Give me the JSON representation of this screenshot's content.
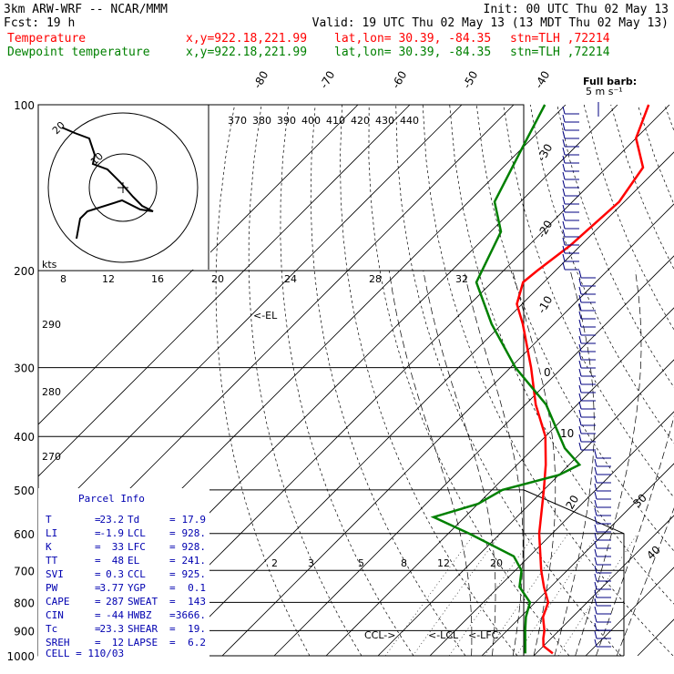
{
  "header": {
    "line1_left": "3km ARW-WRF -- NCAR/MMM",
    "line1_right": "Init: 00 UTC Thu 02 May 13",
    "line2_left": "Fcst:   19 h",
    "line2_right": "Valid: 19 UTC Thu 02 May 13 (13 MDT Thu 02 May 13)",
    "temp_label": "Temperature",
    "dew_label": "Dewpoint temperature",
    "xy": "x,y=922.18,221.99",
    "latlon": "lat,lon= 30.39, -84.35",
    "stn": "stn=TLH ,72214",
    "barb_key": "Full barb:",
    "barb_key2": "5 m s⁻¹"
  },
  "colors": {
    "temperature": "#ff0000",
    "dewpoint": "#008000",
    "text": "#000000",
    "parcel": "#0000b0",
    "barbs": "#000080"
  },
  "chart_data": {
    "type": "skew-t",
    "pressure_levels": [
      100,
      200,
      300,
      400,
      500,
      600,
      700,
      800,
      900,
      1000
    ],
    "temp_tick_labels": [
      "-80",
      "-70",
      "-60",
      "-50",
      "-40",
      "-30",
      "-20",
      "-10",
      "0",
      "10",
      "20",
      "30",
      "40"
    ],
    "theta_labels": [
      "370",
      "380",
      "390",
      "400",
      "410",
      "420",
      "430",
      "440"
    ],
    "theta_side_labels": [
      "290",
      "280",
      "270"
    ],
    "mixing_ratio_labels": [
      "2",
      "3",
      "5",
      "8",
      "12",
      "20"
    ],
    "hodograph_speed_labels": [
      "kts",
      "8",
      "12",
      "16",
      "20",
      "24",
      "28",
      "32"
    ],
    "hodograph_ring_labels": [
      "20",
      "10"
    ],
    "markers": {
      "el": "<-EL",
      "ccl": "CCL->",
      "lcl": "<-LCL",
      "lfc": "<-LFC"
    },
    "temperature": [
      {
        "p": 990,
        "t": 23.2
      },
      {
        "p": 960,
        "t": 20.0
      },
      {
        "p": 930,
        "t": 18.5
      },
      {
        "p": 900,
        "t": 17.2
      },
      {
        "p": 850,
        "t": 14.3
      },
      {
        "p": 800,
        "t": 12.5
      },
      {
        "p": 750,
        "t": 8.7
      },
      {
        "p": 700,
        "t": 5.0
      },
      {
        "p": 600,
        "t": -2.5
      },
      {
        "p": 500,
        "t": -10.0
      },
      {
        "p": 450,
        "t": -14.5
      },
      {
        "p": 400,
        "t": -20.0
      },
      {
        "p": 350,
        "t": -28.0
      },
      {
        "p": 300,
        "t": -36.0
      },
      {
        "p": 250,
        "t": -46.0
      },
      {
        "p": 230,
        "t": -51.0
      },
      {
        "p": 210,
        "t": -54.0
      },
      {
        "p": 200,
        "t": -53.5
      },
      {
        "p": 180,
        "t": -52.0
      },
      {
        "p": 150,
        "t": -51.0
      },
      {
        "p": 130,
        "t": -53.0
      },
      {
        "p": 115,
        "t": -60.0
      },
      {
        "p": 100,
        "t": -64.0
      }
    ],
    "dewpoint": [
      {
        "p": 990,
        "t": 17.9
      },
      {
        "p": 950,
        "t": 16.0
      },
      {
        "p": 900,
        "t": 13.5
      },
      {
        "p": 850,
        "t": 11.0
      },
      {
        "p": 800,
        "t": 9.0
      },
      {
        "p": 750,
        "t": 4.0
      },
      {
        "p": 700,
        "t": 1.2
      },
      {
        "p": 660,
        "t": -3.0
      },
      {
        "p": 600,
        "t": -16.0
      },
      {
        "p": 560,
        "t": -26.0
      },
      {
        "p": 530,
        "t": -20.0
      },
      {
        "p": 500,
        "t": -18.0
      },
      {
        "p": 470,
        "t": -10.0
      },
      {
        "p": 450,
        "t": -8.0
      },
      {
        "p": 420,
        "t": -14.0
      },
      {
        "p": 350,
        "t": -26.0
      },
      {
        "p": 300,
        "t": -39.0
      },
      {
        "p": 250,
        "t": -52.0
      },
      {
        "p": 210,
        "t": -63.0
      },
      {
        "p": 170,
        "t": -68.0
      },
      {
        "p": 150,
        "t": -75.0
      },
      {
        "p": 120,
        "t": -80.0
      },
      {
        "p": 100,
        "t": -84.0
      }
    ],
    "ylim": [
      1000,
      100
    ],
    "xlim_at_1000hpa": [
      -40,
      40
    ]
  },
  "parcel_info": {
    "title": "Parcel Info",
    "rows": [
      {
        "k1": "T",
        "v1": "23.2",
        "k2": "Td",
        "v2": "17.9"
      },
      {
        "k1": "LI",
        "v1": "-1.9",
        "k2": "LCL",
        "v2": "928."
      },
      {
        "k1": "K",
        "v1": "33",
        "k2": "LFC",
        "v2": "928."
      },
      {
        "k1": "TT",
        "v1": "48",
        "k2": "EL",
        "v2": "241."
      },
      {
        "k1": "SVI",
        "v1": "0.3",
        "k2": "CCL",
        "v2": "925."
      },
      {
        "k1": "PW",
        "v1": "3.77",
        "k2": "YGP",
        "v2": "0.1"
      },
      {
        "k1": "CAPE",
        "v1": "287",
        "k2": "SWEAT",
        "v2": "143"
      },
      {
        "k1": "CIN",
        "v1": "-44",
        "k2": "HWBZ",
        "v2": "3666."
      },
      {
        "k1": "Tc",
        "v1": "23.3",
        "k2": "SHEAR",
        "v2": "19."
      },
      {
        "k1": "SREH",
        "v1": "12",
        "k2": "LAPSE",
        "v2": "6.2"
      }
    ],
    "cell": "CELL = 110/03"
  }
}
